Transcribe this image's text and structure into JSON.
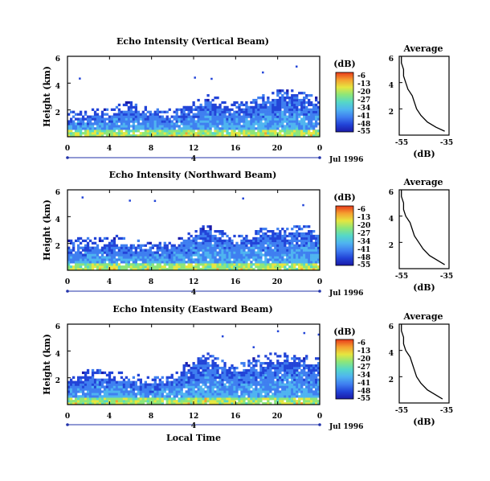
{
  "colors": {
    "colorbar": [
      "#1a1aa8",
      "#2244d8",
      "#3f7ff0",
      "#4fb4f0",
      "#55d8c8",
      "#8ce67a",
      "#e6e640",
      "#f5a030",
      "#e83a1a"
    ],
    "axis": "#000000",
    "profile": "#000000",
    "background": "#ffffff"
  },
  "chart_data": [
    {
      "type": "heatmap",
      "title": "Echo Intensity (Vertical Beam)",
      "ylabel": "Height (km)",
      "xlabel": "",
      "x_ticks": [
        "0",
        "4",
        "8",
        "12",
        "16",
        "20",
        "0"
      ],
      "y_ticks": [
        "2",
        "4",
        "6"
      ],
      "xlim": [
        0,
        24
      ],
      "ylim": [
        0,
        6
      ],
      "date_label": "Jul 1996",
      "day_label": "4",
      "colorbar": {
        "label": "(dB)",
        "ticks": [
          "-6",
          "-13",
          "-20",
          "-27",
          "-34",
          "-41",
          "-48",
          "-55"
        ]
      },
      "echo_top_km": [
        1.2,
        1.4,
        1.4,
        1.6,
        1.6,
        1.9,
        2.0,
        1.8,
        1.6,
        1.5,
        1.5,
        1.6,
        2.1,
        2.6,
        2.4,
        2.1,
        2.0,
        2.1,
        2.4,
        2.6,
        2.9,
        3.0,
        2.9,
        2.6,
        2.3
      ]
    },
    {
      "type": "line",
      "title": "Average",
      "xlabel": "(dB)",
      "x_ticks": [
        "-55",
        "-35"
      ],
      "y_ticks": [
        "2",
        "4",
        "6"
      ],
      "xlim": [
        -57,
        -34
      ],
      "ylim": [
        0,
        6
      ],
      "height_km": [
        0.3,
        0.6,
        1.0,
        1.5,
        2.0,
        2.5,
        3.0,
        3.5,
        4.0,
        4.5,
        5.0,
        5.5,
        6.0
      ],
      "power_db": [
        -36,
        -40,
        -44,
        -47,
        -49,
        -50,
        -51,
        -53,
        -54,
        -55,
        -55,
        -56,
        -56
      ]
    },
    {
      "type": "heatmap",
      "title": "Echo Intensity (Northward Beam)",
      "ylabel": "Height (km)",
      "xlabel": "",
      "x_ticks": [
        "0",
        "4",
        "8",
        "12",
        "16",
        "20",
        "0"
      ],
      "y_ticks": [
        "2",
        "4",
        "6"
      ],
      "xlim": [
        0,
        24
      ],
      "ylim": [
        0,
        6
      ],
      "date_label": "Jul 1996",
      "day_label": "4",
      "colorbar": {
        "label": "(dB)",
        "ticks": [
          "-6",
          "-13",
          "-20",
          "-27",
          "-34",
          "-41",
          "-48",
          "-55"
        ]
      },
      "echo_top_km": [
        1.6,
        1.8,
        1.8,
        1.8,
        1.9,
        2.0,
        1.8,
        1.6,
        1.5,
        1.5,
        1.6,
        2.0,
        2.4,
        2.8,
        2.6,
        2.3,
        2.1,
        2.2,
        2.5,
        2.7,
        2.6,
        2.7,
        2.8,
        2.8,
        2.6
      ]
    },
    {
      "type": "line",
      "title": "Average",
      "xlabel": "(dB)",
      "x_ticks": [
        "-55",
        "-35"
      ],
      "y_ticks": [
        "2",
        "4",
        "6"
      ],
      "xlim": [
        -57,
        -34
      ],
      "ylim": [
        0,
        6
      ],
      "height_km": [
        0.3,
        0.6,
        1.0,
        1.5,
        2.0,
        2.5,
        3.0,
        3.5,
        4.0,
        4.5,
        5.0,
        5.5,
        6.0
      ],
      "power_db": [
        -36,
        -39,
        -43,
        -46,
        -48,
        -50,
        -51,
        -52,
        -54,
        -55,
        -55,
        -56,
        -56
      ]
    },
    {
      "type": "heatmap",
      "title": "Echo Intensity (Eastward Beam)",
      "ylabel": "Height (km)",
      "xlabel": "Local Time",
      "x_ticks": [
        "0",
        "4",
        "8",
        "12",
        "16",
        "20",
        "0"
      ],
      "y_ticks": [
        "2",
        "4",
        "6"
      ],
      "xlim": [
        0,
        24
      ],
      "ylim": [
        0,
        6
      ],
      "date_label": "Jul 1996",
      "day_label": "4",
      "colorbar": {
        "label": "(dB)",
        "ticks": [
          "-6",
          "-13",
          "-20",
          "-27",
          "-34",
          "-41",
          "-48",
          "-55"
        ]
      },
      "echo_top_km": [
        1.4,
        1.6,
        2.0,
        2.0,
        1.9,
        1.8,
        1.7,
        1.6,
        1.5,
        1.6,
        1.8,
        2.3,
        2.9,
        3.3,
        3.1,
        2.7,
        2.4,
        2.6,
        3.0,
        3.2,
        3.2,
        3.2,
        3.1,
        3.0,
        3.0
      ]
    },
    {
      "type": "line",
      "title": "Average",
      "xlabel": "(dB)",
      "x_ticks": [
        "-55",
        "-35"
      ],
      "y_ticks": [
        "2",
        "4",
        "6"
      ],
      "xlim": [
        -57,
        -34
      ],
      "ylim": [
        0,
        6
      ],
      "height_km": [
        0.3,
        0.6,
        1.0,
        1.5,
        2.0,
        2.5,
        3.0,
        3.5,
        4.0,
        4.5,
        5.0,
        5.5,
        6.0
      ],
      "power_db": [
        -37,
        -40,
        -44,
        -47,
        -49,
        -50,
        -51,
        -52,
        -54,
        -55,
        -55,
        -56,
        -56
      ]
    }
  ]
}
